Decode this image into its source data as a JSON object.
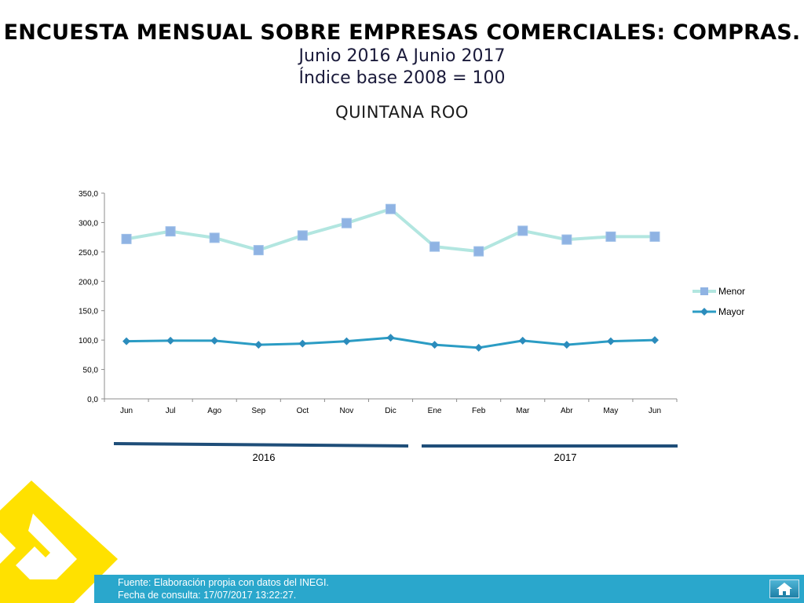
{
  "header": {
    "title": "ENCUESTA MENSUAL SOBRE EMPRESAS COMERCIALES: COMPRAS.",
    "subtitle1": "Junio 2016 A Junio 2017",
    "subtitle2": "Índice base 2008 = 100",
    "region": "QUINTANA ROO"
  },
  "chart_data": {
    "type": "line",
    "categories": [
      "Jun",
      "Jul",
      "Ago",
      "Sep",
      "Oct",
      "Nov",
      "Dic",
      "Ene",
      "Feb",
      "Mar",
      "Abr",
      "May",
      "Jun"
    ],
    "series": [
      {
        "name": "Menor",
        "color": "#b2e6e0",
        "marker": "square",
        "marker_color": "#8fb3e3",
        "values": [
          272,
          285,
          274,
          253,
          278,
          299,
          323,
          259,
          251,
          286,
          271,
          276,
          276
        ]
      },
      {
        "name": "Mayor",
        "color": "#2b9cc4",
        "marker": "diamond",
        "marker_color": "#2b8cbc",
        "values": [
          98,
          99,
          99,
          92,
          94,
          98,
          104,
          92,
          87,
          99,
          92,
          98,
          100
        ]
      }
    ],
    "ylim": [
      0,
      350
    ],
    "yticks": [
      "0,0",
      "50,0",
      "100,0",
      "150,0",
      "200,0",
      "250,0",
      "300,0",
      "350,0"
    ],
    "year_groups": [
      {
        "label": "2016"
      },
      {
        "label": "2017"
      }
    ],
    "legend_position": "right"
  },
  "footer": {
    "line1": "Fuente: Elaboración propia con datos del INEGI.",
    "line2": "Fecha de consulta:  17/07/2017 13:22:27."
  },
  "colors": {
    "footer_bar": "#2aa7cc",
    "logo": "#ffe100",
    "year_bar": "#1f4e79"
  },
  "icons": {
    "home": "home-icon"
  }
}
